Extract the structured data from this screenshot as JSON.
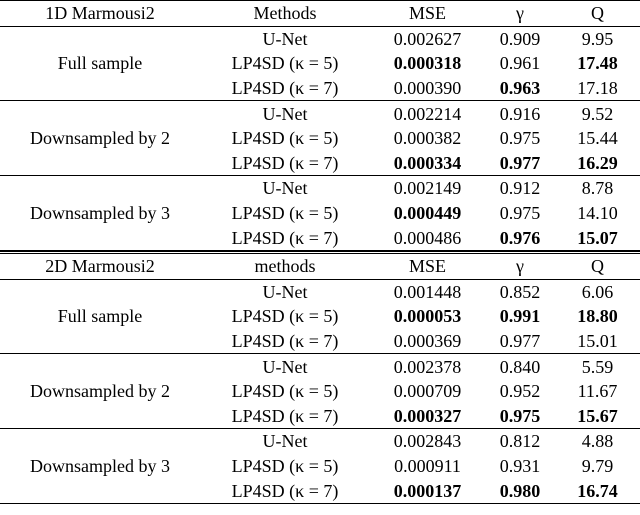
{
  "sections": [
    {
      "header": [
        "1D Marmousi2",
        "Methods",
        "MSE",
        "γ",
        "Q"
      ],
      "groups": [
        {
          "label": "Full sample",
          "rows": [
            {
              "cells": [
                "U-Net",
                "0.002627",
                "0.909",
                "9.95"
              ],
              "bold": []
            },
            {
              "cells": [
                "LP4SD (κ = 5)",
                "0.000318",
                "0.961",
                "17.48"
              ],
              "bold": [
                1,
                3
              ]
            },
            {
              "cells": [
                "LP4SD (κ = 7)",
                "0.000390",
                "0.963",
                "17.18"
              ],
              "bold": [
                2
              ]
            }
          ]
        },
        {
          "label": "Downsampled by 2",
          "rows": [
            {
              "cells": [
                "U-Net",
                "0.002214",
                "0.916",
                "9.52"
              ],
              "bold": []
            },
            {
              "cells": [
                "LP4SD (κ = 5)",
                "0.000382",
                "0.975",
                "15.44"
              ],
              "bold": []
            },
            {
              "cells": [
                "LP4SD (κ = 7)",
                "0.000334",
                "0.977",
                "16.29"
              ],
              "bold": [
                1,
                2,
                3
              ]
            }
          ]
        },
        {
          "label": "Downsampled by 3",
          "rows": [
            {
              "cells": [
                "U-Net",
                "0.002149",
                "0.912",
                "8.78"
              ],
              "bold": []
            },
            {
              "cells": [
                "LP4SD (κ = 5)",
                "0.000449",
                "0.975",
                "14.10"
              ],
              "bold": [
                1
              ]
            },
            {
              "cells": [
                "LP4SD (κ = 7)",
                "0.000486",
                "0.976",
                "15.07"
              ],
              "bold": [
                2,
                3
              ]
            }
          ]
        }
      ]
    },
    {
      "header": [
        "2D Marmousi2",
        "methods",
        "MSE",
        "γ",
        "Q"
      ],
      "groups": [
        {
          "label": "Full sample",
          "rows": [
            {
              "cells": [
                "U-Net",
                "0.001448",
                "0.852",
                "6.06"
              ],
              "bold": []
            },
            {
              "cells": [
                "LP4SD (κ = 5)",
                "0.000053",
                "0.991",
                "18.80"
              ],
              "bold": [
                1,
                2,
                3
              ]
            },
            {
              "cells": [
                "LP4SD (κ = 7)",
                "0.000369",
                "0.977",
                "15.01"
              ],
              "bold": []
            }
          ]
        },
        {
          "label": "Downsampled by 2",
          "rows": [
            {
              "cells": [
                "U-Net",
                "0.002378",
                "0.840",
                "5.59"
              ],
              "bold": []
            },
            {
              "cells": [
                "LP4SD (κ = 5)",
                "0.000709",
                "0.952",
                "11.67"
              ],
              "bold": []
            },
            {
              "cells": [
                "LP4SD (κ = 7)",
                "0.000327",
                "0.975",
                "15.67"
              ],
              "bold": [
                1,
                2,
                3
              ]
            }
          ]
        },
        {
          "label": "Downsampled by 3",
          "rows": [
            {
              "cells": [
                "U-Net",
                "0.002843",
                "0.812",
                "4.88"
              ],
              "bold": []
            },
            {
              "cells": [
                "LP4SD (κ = 5)",
                "0.000911",
                "0.931",
                "9.79"
              ],
              "bold": []
            },
            {
              "cells": [
                "LP4SD (κ = 7)",
                "0.000137",
                "0.980",
                "16.74"
              ],
              "bold": [
                1,
                2,
                3
              ]
            }
          ]
        }
      ]
    }
  ]
}
